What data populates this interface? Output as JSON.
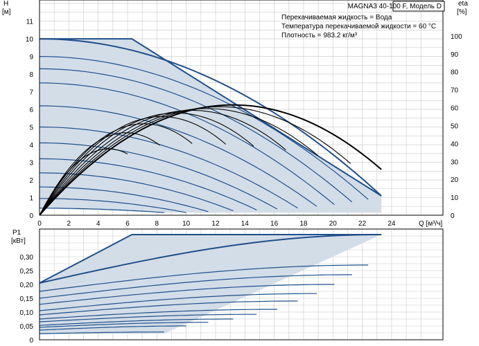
{
  "chart_data": [
    {
      "type": "line",
      "title": "MAGNA3 40-100 F, Модель D",
      "info_lines": [
        "Перекачиваемая жидкость = Вода",
        "Температура перекачиваемой жидкости = 60 °C",
        "Плотность = 983.2 кг/м³"
      ],
      "ylabel": "H",
      "yunit": "[м]",
      "y2label": "eta",
      "y2unit": "[%]",
      "xlabel": "Q [м³/ч]",
      "xlim": [
        0,
        27.5
      ],
      "ylim": [
        0,
        12.2
      ],
      "y2lim": [
        0,
        120
      ],
      "xticks": [
        "0",
        "2",
        "4",
        "6",
        "8",
        "10",
        "12",
        "14",
        "16",
        "18",
        "20",
        "22",
        "24"
      ],
      "yticks": [
        "0",
        "1",
        "2",
        "3",
        "4",
        "5",
        "6",
        "7",
        "8",
        "9",
        "10",
        "11"
      ],
      "y2ticks": [
        "0",
        "10",
        "20",
        "30",
        "40",
        "50",
        "60",
        "70",
        "80",
        "90",
        "100"
      ],
      "envelope": [
        [
          0,
          10
        ],
        [
          6.3,
          10
        ],
        [
          23.3,
          1.1
        ],
        [
          23.3,
          0.15
        ],
        [
          8.5,
          0.15
        ],
        [
          0,
          0.4
        ]
      ],
      "head_curves": [
        {
          "qmax": 23.3,
          "h0": 10.0,
          "h1": 1.1
        },
        {
          "qmax": 22.4,
          "h0": 9.0,
          "h1": 0.9
        },
        {
          "qmax": 21.3,
          "h0": 8.3,
          "h1": 0.75
        },
        {
          "qmax": 20.1,
          "h0": 7.5,
          "h1": 0.6
        },
        {
          "qmax": 18.9,
          "h0": 6.2,
          "h1": 0.5
        },
        {
          "qmax": 17.6,
          "h0": 5.0,
          "h1": 0.4
        },
        {
          "qmax": 16.2,
          "h0": 4.1,
          "h1": 0.35
        },
        {
          "qmax": 14.8,
          "h0": 3.2,
          "h1": 0.3
        },
        {
          "qmax": 13.2,
          "h0": 2.4,
          "h1": 0.25
        },
        {
          "qmax": 11.5,
          "h0": 1.6,
          "h1": 0.2
        },
        {
          "qmax": 10.0,
          "h0": 0.95,
          "h1": 0.15
        },
        {
          "qmax": 8.5,
          "h0": 0.4,
          "h1": 0.15
        }
      ],
      "eta_curves": [
        {
          "qmax": 23.3,
          "emax": 61.5,
          "qpeak": 13.2
        },
        {
          "qmax": 21.2,
          "emax": 60.5,
          "qpeak": 12.3
        },
        {
          "qmax": 19.0,
          "emax": 59.5,
          "qpeak": 11.4
        },
        {
          "qmax": 16.8,
          "emax": 58.5,
          "qpeak": 10.4
        },
        {
          "qmax": 14.6,
          "emax": 57.0,
          "qpeak": 9.3
        },
        {
          "qmax": 12.7,
          "emax": 55.0,
          "qpeak": 8.3
        },
        {
          "qmax": 10.4,
          "emax": 51.0,
          "qpeak": 7.1
        },
        {
          "qmax": 8.2,
          "emax": 46.0,
          "qpeak": 5.9
        },
        {
          "qmax": 6.0,
          "emax": 37.0,
          "qpeak": 4.7
        }
      ]
    },
    {
      "type": "line",
      "ylabel": "P1",
      "yunit": "[кВт]",
      "ylim": [
        0,
        0.4
      ],
      "yticks": [
        "0",
        "0,05",
        "0,10",
        "0,15",
        "0,20",
        "0,25",
        "0,30"
      ],
      "envelope": [
        [
          0,
          0.205
        ],
        [
          6.3,
          0.38
        ],
        [
          23.3,
          0.38
        ],
        [
          8.5,
          0.022
        ],
        [
          0,
          0.02
        ]
      ],
      "power_curves": [
        {
          "qmax": 23.3,
          "p0": 0.205,
          "p1": 0.38
        },
        {
          "qmax": 22.4,
          "p0": 0.175,
          "p1": 0.27
        },
        {
          "qmax": 21.3,
          "p0": 0.15,
          "p1": 0.235
        },
        {
          "qmax": 20.1,
          "p0": 0.128,
          "p1": 0.2
        },
        {
          "qmax": 18.9,
          "p0": 0.105,
          "p1": 0.167
        },
        {
          "qmax": 17.6,
          "p0": 0.09,
          "p1": 0.14
        },
        {
          "qmax": 16.2,
          "p0": 0.075,
          "p1": 0.11
        },
        {
          "qmax": 14.8,
          "p0": 0.065,
          "p1": 0.092
        },
        {
          "qmax": 13.2,
          "p0": 0.052,
          "p1": 0.075
        },
        {
          "qmax": 11.5,
          "p0": 0.045,
          "p1": 0.063
        },
        {
          "qmax": 10.0,
          "p0": 0.035,
          "p1": 0.05
        },
        {
          "qmax": 8.5,
          "p0": 0.022,
          "p1": 0.028
        }
      ]
    }
  ]
}
